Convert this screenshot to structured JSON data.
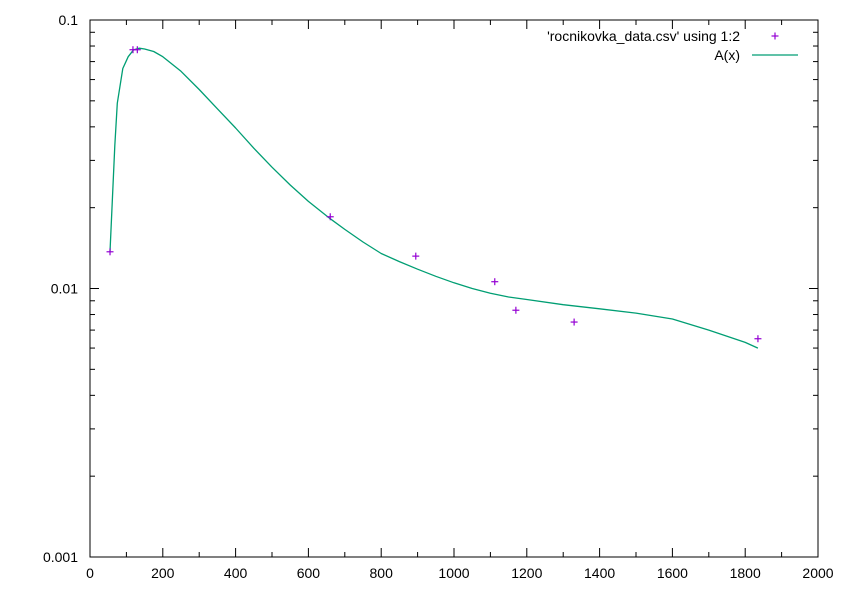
{
  "chart_data": {
    "type": "scatter",
    "title": "",
    "xlabel": "",
    "ylabel": "",
    "xlim": [
      0,
      2000
    ],
    "ylim": [
      0.001,
      0.1
    ],
    "y_scale": "log",
    "grid": false,
    "legend_position": "top-right",
    "x_ticks": [
      "0",
      "200",
      "400",
      "600",
      "800",
      "1000",
      "1200",
      "1400",
      "1600",
      "1800",
      "2000"
    ],
    "y_ticks": [
      "0.001",
      "0.01",
      "0.1"
    ],
    "series": [
      {
        "name": "'rocnikovka_data.csv' using 1:2",
        "kind": "points",
        "marker": "plus",
        "color": "#9400d3",
        "points": [
          [
            55,
            0.0137
          ],
          [
            118,
            0.0775
          ],
          [
            130,
            0.0775
          ],
          [
            660,
            0.0185
          ],
          [
            895,
            0.0132
          ],
          [
            1112,
            0.0106
          ],
          [
            1170,
            0.0083
          ],
          [
            1330,
            0.0075
          ],
          [
            1835,
            0.0065
          ]
        ]
      },
      {
        "name": "A(x)",
        "kind": "line",
        "color": "#009e73",
        "points": [
          [
            55,
            0.0137
          ],
          [
            68,
            0.034
          ],
          [
            75,
            0.049
          ],
          [
            90,
            0.066
          ],
          [
            105,
            0.073
          ],
          [
            120,
            0.0775
          ],
          [
            135,
            0.0785
          ],
          [
            150,
            0.078
          ],
          [
            175,
            0.0763
          ],
          [
            200,
            0.073
          ],
          [
            250,
            0.0644
          ],
          [
            300,
            0.0551
          ],
          [
            350,
            0.0467
          ],
          [
            400,
            0.0396
          ],
          [
            450,
            0.0333
          ],
          [
            500,
            0.0283
          ],
          [
            550,
            0.0243
          ],
          [
            600,
            0.0211
          ],
          [
            660,
            0.0182
          ],
          [
            700,
            0.0166
          ],
          [
            750,
            0.0149
          ],
          [
            800,
            0.0135
          ],
          [
            850,
            0.0126
          ],
          [
            900,
            0.0118
          ],
          [
            950,
            0.0111
          ],
          [
            1000,
            0.0105
          ],
          [
            1050,
            0.01
          ],
          [
            1100,
            0.0096
          ],
          [
            1150,
            0.0093
          ],
          [
            1200,
            0.0091
          ],
          [
            1300,
            0.0087
          ],
          [
            1400,
            0.0084
          ],
          [
            1500,
            0.0081
          ],
          [
            1600,
            0.0077
          ],
          [
            1700,
            0.007
          ],
          [
            1800,
            0.0063
          ],
          [
            1835,
            0.006
          ]
        ]
      }
    ]
  }
}
